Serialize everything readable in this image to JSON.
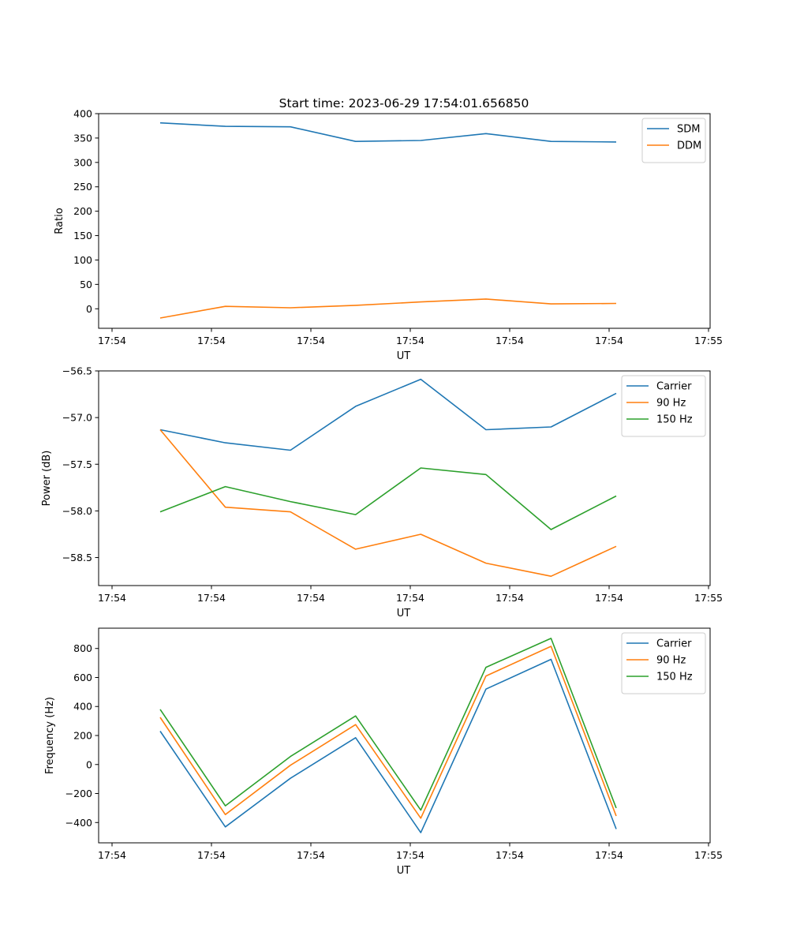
{
  "figure_title": "Start time: 2023-06-29 17:54:01.656850",
  "colors": {
    "blue": "#1f77b4",
    "orange": "#ff7f0e",
    "green": "#2ca02c"
  },
  "chart_data": [
    {
      "type": "line",
      "title": "Start time: 2023-06-29 17:54:01.656850",
      "xlabel": "UT",
      "ylabel": "Ratio",
      "x_tick_labels": [
        "17:54",
        "17:54",
        "17:54",
        "17:54",
        "17:54",
        "17:54",
        "17:54"
      ],
      "x_last_tick_label": "17:55",
      "x": [
        0,
        1,
        2,
        3,
        4,
        5,
        6,
        7
      ],
      "xlim": [
        -0.75,
        8.2
      ],
      "ylim": [
        -40,
        400
      ],
      "yticks": [
        0,
        50,
        100,
        150,
        200,
        250,
        300,
        350,
        400
      ],
      "legend": "top-right",
      "series": [
        {
          "name": "SDM",
          "color": "#1f77b4",
          "values": [
            381,
            374,
            373,
            343,
            345,
            359,
            343,
            342
          ]
        },
        {
          "name": "DDM",
          "color": "#ff7f0e",
          "values": [
            -19,
            5,
            2,
            7,
            14,
            20,
            10,
            11
          ]
        }
      ]
    },
    {
      "type": "line",
      "xlabel": "UT",
      "ylabel": "Power (dB)",
      "x_tick_labels": [
        "17:54",
        "17:54",
        "17:54",
        "17:54",
        "17:54",
        "17:54",
        "17:54"
      ],
      "x_last_tick_label": "17:55",
      "x": [
        0,
        1,
        2,
        3,
        4,
        5,
        6,
        7
      ],
      "xlim": [
        -0.75,
        8.2
      ],
      "ylim": [
        -58.8,
        -56.5
      ],
      "yticks": [
        -58.5,
        -58.0,
        -57.5,
        -57.0,
        -56.5
      ],
      "legend": "top-right",
      "series": [
        {
          "name": "Carrier",
          "color": "#1f77b4",
          "values": [
            -57.13,
            -57.27,
            -57.35,
            -56.88,
            -56.59,
            -57.13,
            -57.1,
            -56.74
          ]
        },
        {
          "name": "90 Hz",
          "color": "#ff7f0e",
          "values": [
            -57.13,
            -57.96,
            -58.01,
            -58.41,
            -58.25,
            -58.56,
            -58.7,
            -58.38
          ]
        },
        {
          "name": "150 Hz",
          "color": "#2ca02c",
          "values": [
            -58.01,
            -57.74,
            -57.9,
            -58.04,
            -57.54,
            -57.61,
            -58.2,
            -57.84
          ]
        }
      ]
    },
    {
      "type": "line",
      "xlabel": "UT",
      "ylabel": "Frequency (Hz)",
      "x_tick_labels": [
        "17:54",
        "17:54",
        "17:54",
        "17:54",
        "17:54",
        "17:54",
        "17:54"
      ],
      "x_last_tick_label": "17:55",
      "x": [
        0,
        1,
        2,
        3,
        4,
        5,
        6,
        7
      ],
      "xlim": [
        -0.75,
        8.2
      ],
      "ylim": [
        -540,
        940
      ],
      "yticks": [
        -400,
        -200,
        0,
        200,
        400,
        600,
        800
      ],
      "legend": "top-right",
      "series": [
        {
          "name": "Carrier",
          "color": "#1f77b4",
          "values": [
            230,
            -430,
            -95,
            185,
            -470,
            520,
            725,
            -445
          ]
        },
        {
          "name": "90 Hz",
          "color": "#ff7f0e",
          "values": [
            325,
            -345,
            -5,
            275,
            -370,
            610,
            815,
            -355
          ]
        },
        {
          "name": "150 Hz",
          "color": "#2ca02c",
          "values": [
            380,
            -285,
            55,
            335,
            -315,
            670,
            870,
            -300
          ]
        }
      ]
    }
  ]
}
